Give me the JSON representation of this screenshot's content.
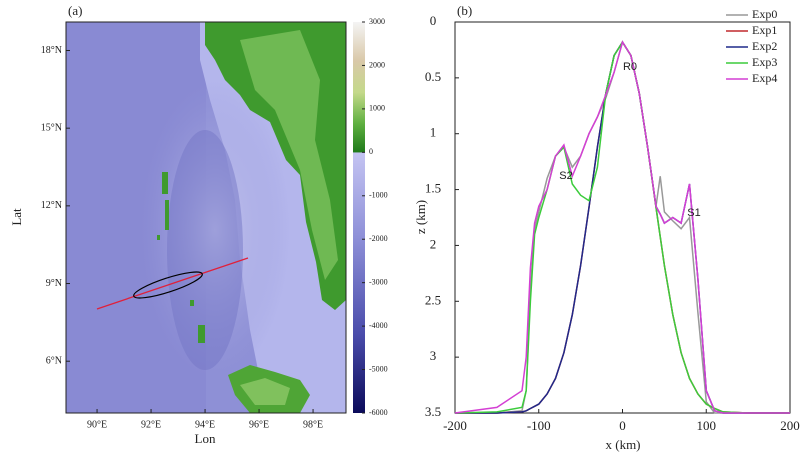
{
  "chart_data": [
    {
      "type": "map",
      "title": "(a)",
      "xlabel": "Lon",
      "ylabel": "Lat",
      "xlim": [
        88.85,
        99.22
      ],
      "ylim": [
        4.0,
        19.1
      ],
      "xticks": [
        {
          "value": 90,
          "label": "90°E"
        },
        {
          "value": 92,
          "label": "92°E"
        },
        {
          "value": 94,
          "label": "94°E"
        },
        {
          "value": 96,
          "label": "96°E"
        },
        {
          "value": 98,
          "label": "98°E"
        }
      ],
      "yticks": [
        {
          "value": 6,
          "label": "6°N"
        },
        {
          "value": 9,
          "label": "9°N"
        },
        {
          "value": 12,
          "label": "12°N"
        },
        {
          "value": 15,
          "label": "15°N"
        },
        {
          "value": 18,
          "label": "18°N"
        }
      ],
      "clim": [
        -6000,
        3000
      ],
      "cticks": [
        3000,
        2000,
        1000,
        0,
        -1000,
        -2000,
        -3000,
        -4000,
        -5000,
        -6000
      ]
    },
    {
      "type": "line",
      "title": "(b)",
      "xlabel": "x (km)",
      "ylabel": "z (km)",
      "xlim": [
        -200,
        200
      ],
      "ylim": [
        0,
        3.5
      ],
      "y_inverted": true,
      "xticks": [
        -200,
        -100,
        0,
        100,
        200
      ],
      "yticks": [
        0,
        0.5,
        1,
        1.5,
        2,
        2.5,
        3,
        3.5
      ],
      "legend": "upper right",
      "annotations": [
        "R0",
        "S2",
        "S1"
      ],
      "x": [
        -200,
        -150,
        -120,
        -115,
        -110,
        -105,
        -100,
        -90,
        -80,
        -70,
        -60,
        -50,
        -40,
        -30,
        -20,
        -10,
        0,
        10,
        20,
        30,
        40,
        45,
        50,
        60,
        70,
        80,
        90,
        100,
        110,
        120,
        150,
        200
      ],
      "series": [
        {
          "name": "Exp0",
          "color": "#999999",
          "values": [
            3.5,
            3.5,
            3.48,
            3.3,
            2.4,
            1.85,
            1.7,
            1.4,
            1.2,
            1.12,
            1.3,
            1.2,
            1.0,
            0.85,
            0.68,
            0.45,
            0.18,
            0.3,
            0.64,
            1.12,
            1.65,
            1.38,
            1.7,
            1.78,
            1.85,
            1.75,
            2.6,
            3.4,
            3.5,
            3.5,
            3.5,
            3.5
          ]
        },
        {
          "name": "Exp1",
          "color": "#c0282d",
          "values": [
            3.5,
            3.5,
            3.49,
            3.48,
            3.46,
            3.44,
            3.42,
            3.33,
            3.19,
            2.96,
            2.62,
            2.18,
            1.66,
            1.12,
            0.64,
            0.3,
            0.18,
            0.3,
            0.64,
            1.12,
            1.66,
            1.92,
            2.18,
            2.62,
            2.96,
            3.19,
            3.33,
            3.42,
            3.46,
            3.49,
            3.5,
            3.5
          ]
        },
        {
          "name": "Exp2",
          "color": "#1f2a8a",
          "values": [
            3.5,
            3.5,
            3.49,
            3.48,
            3.46,
            3.44,
            3.42,
            3.33,
            3.19,
            2.96,
            2.62,
            2.18,
            1.66,
            1.12,
            0.64,
            0.3,
            0.18,
            0.3,
            0.64,
            1.12,
            1.65,
            1.72,
            1.8,
            1.75,
            1.8,
            1.45,
            2.3,
            3.3,
            3.48,
            3.5,
            3.5,
            3.5
          ]
        },
        {
          "name": "Exp3",
          "color": "#3ccc3c",
          "values": [
            3.5,
            3.49,
            3.45,
            3.3,
            2.5,
            1.9,
            1.75,
            1.5,
            1.2,
            1.12,
            1.45,
            1.55,
            1.6,
            1.3,
            0.64,
            0.3,
            0.18,
            0.3,
            0.64,
            1.12,
            1.66,
            1.92,
            2.18,
            2.62,
            2.96,
            3.19,
            3.33,
            3.42,
            3.46,
            3.49,
            3.5,
            3.5
          ]
        },
        {
          "name": "Exp4",
          "color": "#d43fd4",
          "values": [
            3.5,
            3.45,
            3.3,
            3.0,
            2.2,
            1.8,
            1.65,
            1.5,
            1.2,
            1.1,
            1.38,
            1.2,
            1.0,
            0.85,
            0.65,
            0.45,
            0.18,
            0.3,
            0.64,
            1.12,
            1.65,
            1.72,
            1.8,
            1.75,
            1.8,
            1.45,
            2.3,
            3.3,
            3.48,
            3.5,
            3.5,
            3.5
          ]
        }
      ]
    }
  ]
}
